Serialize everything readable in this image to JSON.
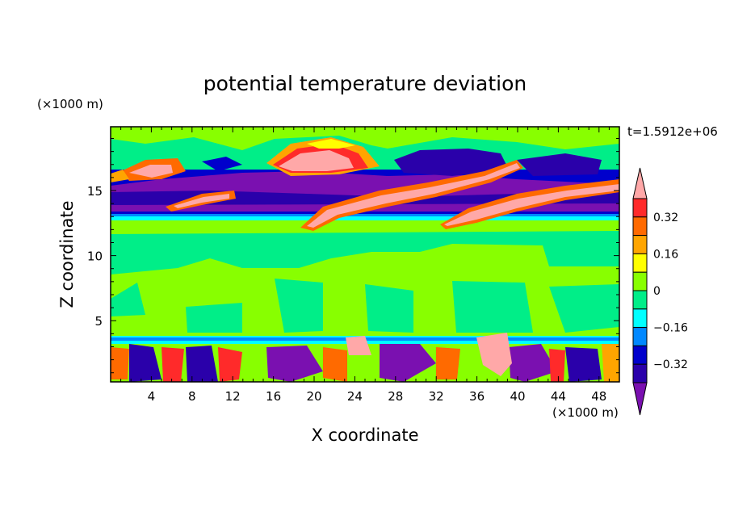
{
  "chart_data": {
    "type": "heatmap",
    "title": "potential temperature deviation",
    "xlabel": "X coordinate",
    "ylabel": "Z coordinate",
    "x_unit": "(×1000 m)",
    "y_unit": "(×1000 m)",
    "time_label": "t=1.5912e+06",
    "xlim": [
      0,
      50
    ],
    "ylim": [
      0.3,
      19.9
    ],
    "x_ticks": [
      "4",
      "8",
      "12",
      "16",
      "20",
      "24",
      "28",
      "32",
      "36",
      "40",
      "44",
      "48"
    ],
    "y_ticks": [
      "5",
      "10",
      "15"
    ],
    "colorbar": {
      "tick_labels": [
        "0.32",
        "0.16",
        "0",
        "−0.16",
        "−0.32"
      ],
      "levels": [
        {
          "min": 0.4,
          "max": 0.48,
          "color": "#ffa8a8"
        },
        {
          "min": 0.32,
          "max": 0.4,
          "color": "#ff2a2a"
        },
        {
          "min": 0.24,
          "max": 0.32,
          "color": "#ff6a00"
        },
        {
          "min": 0.16,
          "max": 0.24,
          "color": "#ffa500"
        },
        {
          "min": 0.08,
          "max": 0.16,
          "color": "#ffff00"
        },
        {
          "min": 0.0,
          "max": 0.08,
          "color": "#88ff00"
        },
        {
          "min": -0.08,
          "max": 0.0,
          "color": "#00ee88"
        },
        {
          "min": -0.16,
          "max": -0.08,
          "color": "#00ffff"
        },
        {
          "min": -0.24,
          "max": -0.16,
          "color": "#0088ff"
        },
        {
          "min": -0.32,
          "max": -0.24,
          "color": "#0000cc"
        },
        {
          "min": -0.4,
          "max": -0.32,
          "color": "#2a00aa"
        },
        {
          "min": -0.48,
          "max": -0.4,
          "color": "#7a10b0"
        }
      ]
    }
  }
}
